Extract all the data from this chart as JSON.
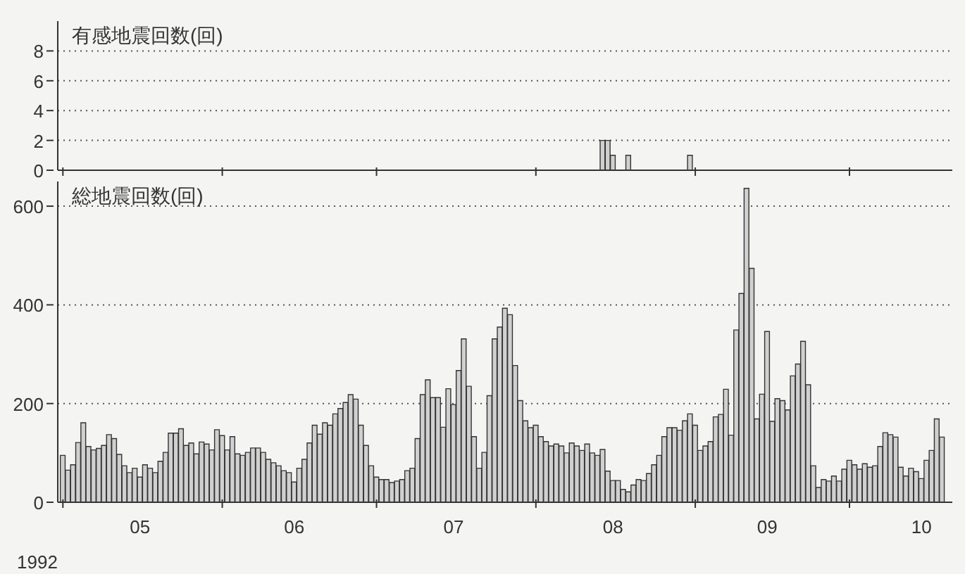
{
  "chart_data": [
    {
      "type": "bar",
      "ylabel": "有感地震回数(回)",
      "x": [
        "1992-08-14",
        "1992-08-15",
        "1992-08-16",
        "1992-08-19",
        "1992-08-31"
      ],
      "values": [
        2,
        2,
        1,
        1,
        1
      ],
      "color": "#d0d0d0",
      "xlim": [
        "1992-04-30",
        "1992-10-21"
      ],
      "xticks": [
        {
          "value": "1992-05-01",
          "label": null
        },
        {
          "value": "1992-06-01",
          "label": null
        },
        {
          "value": "1992-07-01",
          "label": null
        },
        {
          "value": "1992-08-01",
          "label": null
        },
        {
          "value": "1992-09-01",
          "label": null
        },
        {
          "value": "1992-10-01",
          "label": null
        }
      ],
      "ylim": [
        0,
        10
      ],
      "yticks": [
        0,
        2,
        4,
        6,
        8
      ],
      "grid": "y",
      "tick_labels": "y"
    },
    {
      "type": "bar",
      "ylabel": "総地震回数(回)",
      "xlabel": "1992",
      "x": [
        "1992-05-01",
        "1992-05-02",
        "1992-05-03",
        "1992-05-04",
        "1992-05-05",
        "1992-05-06",
        "1992-05-07",
        "1992-05-08",
        "1992-05-09",
        "1992-05-10",
        "1992-05-11",
        "1992-05-12",
        "1992-05-13",
        "1992-05-14",
        "1992-05-15",
        "1992-05-16",
        "1992-05-17",
        "1992-05-18",
        "1992-05-19",
        "1992-05-20",
        "1992-05-21",
        "1992-05-22",
        "1992-05-23",
        "1992-05-24",
        "1992-05-25",
        "1992-05-26",
        "1992-05-27",
        "1992-05-28",
        "1992-05-29",
        "1992-05-30",
        "1992-05-31",
        "1992-06-01",
        "1992-06-02",
        "1992-06-03",
        "1992-06-04",
        "1992-06-05",
        "1992-06-06",
        "1992-06-07",
        "1992-06-08",
        "1992-06-09",
        "1992-06-10",
        "1992-06-11",
        "1992-06-12",
        "1992-06-13",
        "1992-06-14",
        "1992-06-15",
        "1992-06-16",
        "1992-06-17",
        "1992-06-18",
        "1992-06-19",
        "1992-06-20",
        "1992-06-21",
        "1992-06-22",
        "1992-06-23",
        "1992-06-24",
        "1992-06-25",
        "1992-06-26",
        "1992-06-27",
        "1992-06-28",
        "1992-06-29",
        "1992-06-30",
        "1992-07-01",
        "1992-07-02",
        "1992-07-03",
        "1992-07-04",
        "1992-07-05",
        "1992-07-06",
        "1992-07-07",
        "1992-07-08",
        "1992-07-09",
        "1992-07-10",
        "1992-07-11",
        "1992-07-12",
        "1992-07-13",
        "1992-07-14",
        "1992-07-15",
        "1992-07-16",
        "1992-07-17",
        "1992-07-18",
        "1992-07-19",
        "1992-07-20",
        "1992-07-21",
        "1992-07-22",
        "1992-07-23",
        "1992-07-24",
        "1992-07-25",
        "1992-07-26",
        "1992-07-27",
        "1992-07-28",
        "1992-07-29",
        "1992-07-30",
        "1992-07-31",
        "1992-08-01",
        "1992-08-02",
        "1992-08-03",
        "1992-08-04",
        "1992-08-05",
        "1992-08-06",
        "1992-08-07",
        "1992-08-08",
        "1992-08-09",
        "1992-08-10",
        "1992-08-11",
        "1992-08-12",
        "1992-08-13",
        "1992-08-14",
        "1992-08-15",
        "1992-08-16",
        "1992-08-17",
        "1992-08-18",
        "1992-08-19",
        "1992-08-20",
        "1992-08-21",
        "1992-08-22",
        "1992-08-23",
        "1992-08-24",
        "1992-08-25",
        "1992-08-26",
        "1992-08-27",
        "1992-08-28",
        "1992-08-29",
        "1992-08-30",
        "1992-08-31",
        "1992-09-01",
        "1992-09-02",
        "1992-09-03",
        "1992-09-04",
        "1992-09-05",
        "1992-09-06",
        "1992-09-07",
        "1992-09-08",
        "1992-09-09",
        "1992-09-10",
        "1992-09-11",
        "1992-09-12",
        "1992-09-13",
        "1992-09-14",
        "1992-09-15",
        "1992-09-16",
        "1992-09-17",
        "1992-09-18",
        "1992-09-19",
        "1992-09-20",
        "1992-09-21",
        "1992-09-22",
        "1992-09-23",
        "1992-09-24",
        "1992-09-25",
        "1992-09-26",
        "1992-09-27",
        "1992-09-28",
        "1992-09-29",
        "1992-09-30",
        "1992-10-01",
        "1992-10-02",
        "1992-10-03",
        "1992-10-04",
        "1992-10-05",
        "1992-10-06",
        "1992-10-07",
        "1992-10-08",
        "1992-10-09",
        "1992-10-10",
        "1992-10-11",
        "1992-10-12",
        "1992-10-13",
        "1992-10-14",
        "1992-10-15",
        "1992-10-16",
        "1992-10-17",
        "1992-10-18",
        "1992-10-19"
      ],
      "values": [
        95,
        65,
        76,
        121,
        161,
        113,
        106,
        109,
        115,
        137,
        129,
        97,
        74,
        60,
        69,
        51,
        76,
        69,
        60,
        83,
        101,
        140,
        140,
        149,
        115,
        120,
        98,
        122,
        118,
        106,
        147,
        135,
        106,
        133,
        98,
        95,
        101,
        110,
        110,
        101,
        87,
        80,
        74,
        64,
        60,
        41,
        69,
        87,
        120,
        156,
        138,
        161,
        156,
        179,
        190,
        202,
        218,
        209,
        156,
        115,
        74,
        51,
        46,
        46,
        40,
        43,
        46,
        64,
        69,
        129,
        218,
        248,
        212,
        212,
        152,
        230,
        198,
        267,
        331,
        235,
        133,
        69,
        101,
        216,
        331,
        355,
        393,
        380,
        277,
        206,
        165,
        151,
        156,
        133,
        123,
        114,
        118,
        114,
        100,
        120,
        114,
        105,
        118,
        100,
        95,
        107,
        63,
        44,
        44,
        26,
        21,
        35,
        46,
        44,
        58,
        76,
        95,
        133,
        151,
        151,
        146,
        165,
        179,
        156,
        105,
        114,
        123,
        173,
        178,
        229,
        136,
        349,
        423,
        636,
        474,
        169,
        219,
        346,
        164,
        210,
        206,
        187,
        256,
        280,
        326,
        238,
        74,
        30,
        46,
        43,
        53,
        43,
        67,
        85,
        76,
        67,
        78,
        71,
        74,
        113,
        141,
        137,
        132,
        71,
        53,
        69,
        62,
        48,
        85,
        105,
        169,
        132
      ],
      "color": "#d0d0d0",
      "xlim": [
        "1992-04-30",
        "1992-10-21"
      ],
      "xticks": [
        {
          "value": "1992-05-01",
          "label": null
        },
        {
          "value": "1992-05-16",
          "label": "05"
        },
        {
          "value": "1992-06-01",
          "label": null
        },
        {
          "value": "1992-06-15",
          "label": "06"
        },
        {
          "value": "1992-07-01",
          "label": null
        },
        {
          "value": "1992-07-16",
          "label": "07"
        },
        {
          "value": "1992-08-01",
          "label": null
        },
        {
          "value": "1992-08-16",
          "label": "08"
        },
        {
          "value": "1992-09-01",
          "label": null
        },
        {
          "value": "1992-09-15",
          "label": "09"
        },
        {
          "value": "1992-10-01",
          "label": null
        },
        {
          "value": "1992-10-15",
          "label": "10"
        }
      ],
      "ylim": [
        0,
        650
      ],
      "yticks": [
        0,
        200,
        400,
        600
      ],
      "grid": "y"
    }
  ]
}
